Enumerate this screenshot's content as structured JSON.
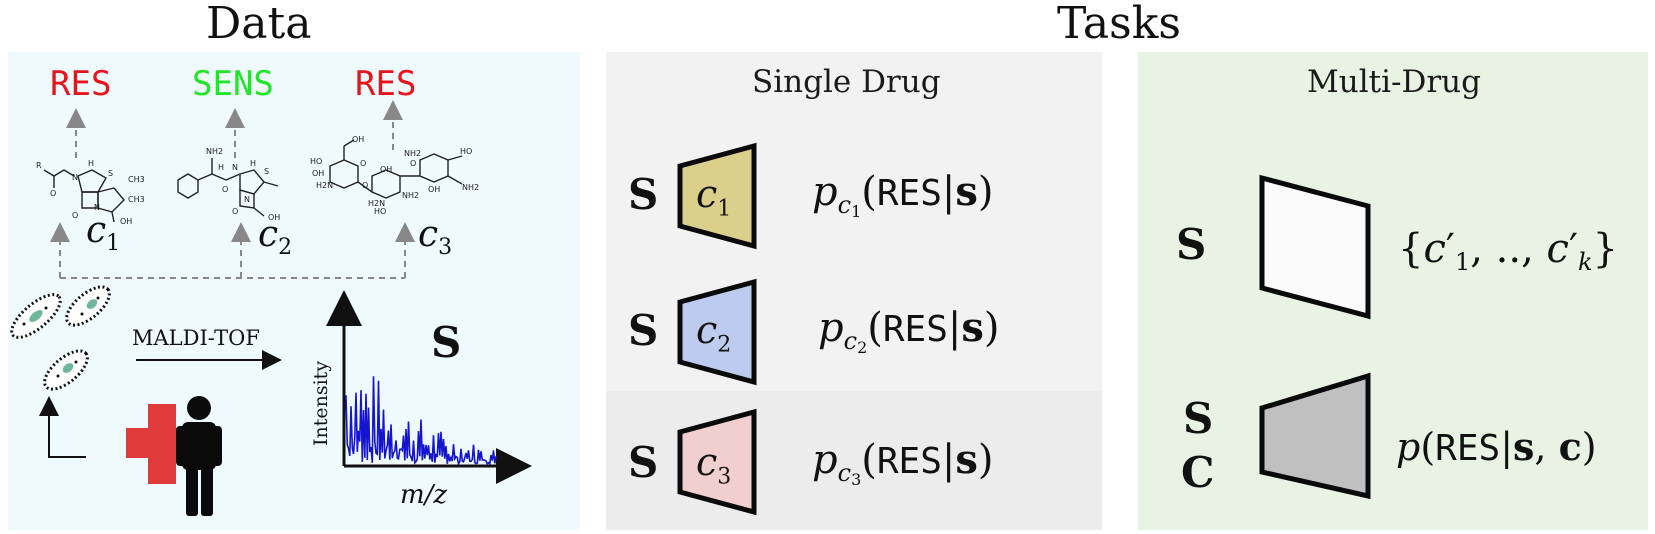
{
  "headings": {
    "data": "Data",
    "tasks": "Tasks"
  },
  "data_panel": {
    "drugs": [
      {
        "label": "RES",
        "color": "#e8141b",
        "name": "c",
        "sub": "1"
      },
      {
        "label": "SENS",
        "color": "#22e52a",
        "name": "c",
        "sub": "2"
      },
      {
        "label": "RES",
        "color": "#e8141b",
        "name": "c",
        "sub": "3"
      }
    ],
    "maldi_label": "MALDI-TOF",
    "spectrum": {
      "symbol": "S",
      "ylabel": "Intensity",
      "xlabel": "m/z",
      "series_color": "#1515d0"
    },
    "molecule_atoms": {
      "m1": [
        "R",
        "H",
        "N",
        "O",
        "S",
        "CH3",
        "CH3",
        "N",
        "O",
        "OH"
      ],
      "m2": [
        "NH2",
        "H",
        "N",
        "H",
        "S",
        "O",
        "N",
        "O",
        "OH"
      ],
      "m3": [
        "OH",
        "HO",
        "OH",
        "H2N",
        "O",
        "O",
        "H2N",
        "NH2",
        "OH",
        "HO",
        "O",
        "OH",
        "NH2",
        "HO",
        "NH2"
      ]
    },
    "cross_color": "#e03a3a"
  },
  "single_panel": {
    "title": "Single Drug",
    "rows": [
      {
        "input": "S",
        "box_label": "c",
        "box_sub": "1",
        "fill": "#dccf8b",
        "p": "p",
        "c": "c",
        "sub": "1",
        "res": "RES",
        "bar": "|",
        "s": "s",
        "open": "(",
        "close": ")"
      },
      {
        "input": "S",
        "box_label": "c",
        "box_sub": "2",
        "fill": "#bccbee",
        "p": "p",
        "c": "c",
        "sub": "2",
        "res": "RES",
        "bar": "|",
        "s": "s",
        "open": "(",
        "close": ")"
      },
      {
        "input": "S",
        "box_label": "c",
        "box_sub": "3",
        "fill": "#f2cfcf",
        "p": "p",
        "c": "c",
        "sub": "3",
        "res": "RES",
        "bar": "|",
        "s": "s",
        "open": "(",
        "close": ")"
      }
    ]
  },
  "multi_panel": {
    "title": "Multi-Drug",
    "top": {
      "input": "S",
      "fill": "#fafafa",
      "brace_open": "{",
      "c": "c",
      "prime": "′",
      "sub1": "1",
      "dots": ", .., ",
      "subk": "k",
      "brace_close": "}"
    },
    "bottom": {
      "input1": "S",
      "input2": "C",
      "fill": "#c0c0c0",
      "p": "p",
      "open": "(",
      "res": "RES",
      "bar": "|",
      "s": "s",
      "comma": ", ",
      "c": "c",
      "close": ")"
    }
  }
}
